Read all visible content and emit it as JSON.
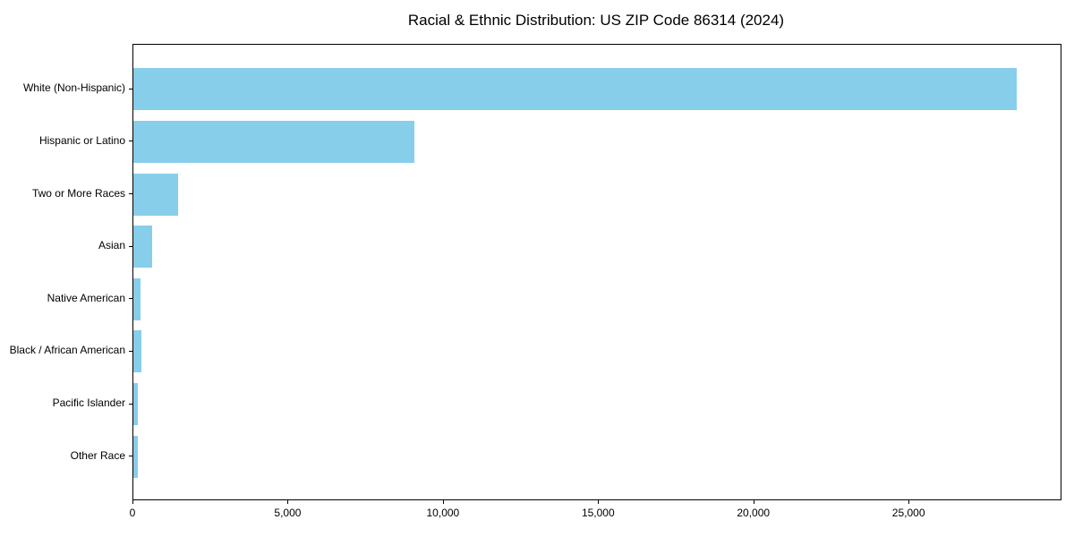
{
  "chart_data": {
    "type": "bar",
    "orientation": "horizontal",
    "title": "Racial & Ethnic Distribution: US ZIP Code 86314 (2024)",
    "categories": [
      "White (Non-Hispanic)",
      "Hispanic or Latino",
      "Two or More Races",
      "Asian",
      "Native American",
      "Black / African American",
      "Pacific Islander",
      "Other Race"
    ],
    "values": [
      28500,
      9070,
      1430,
      600,
      220,
      250,
      150,
      140
    ],
    "x_ticks": [
      0,
      5000,
      10000,
      15000,
      20000,
      25000
    ],
    "x_tick_labels": [
      "0",
      "5,000",
      "10,000",
      "15,000",
      "20,000",
      "25,000"
    ],
    "xlim": [
      0,
      29925
    ],
    "xlabel": "",
    "ylabel": "",
    "grid": false,
    "legend_position": "none",
    "bar_color": "#87CEEB",
    "axis_color": "#000000",
    "background_color": "#ffffff"
  }
}
